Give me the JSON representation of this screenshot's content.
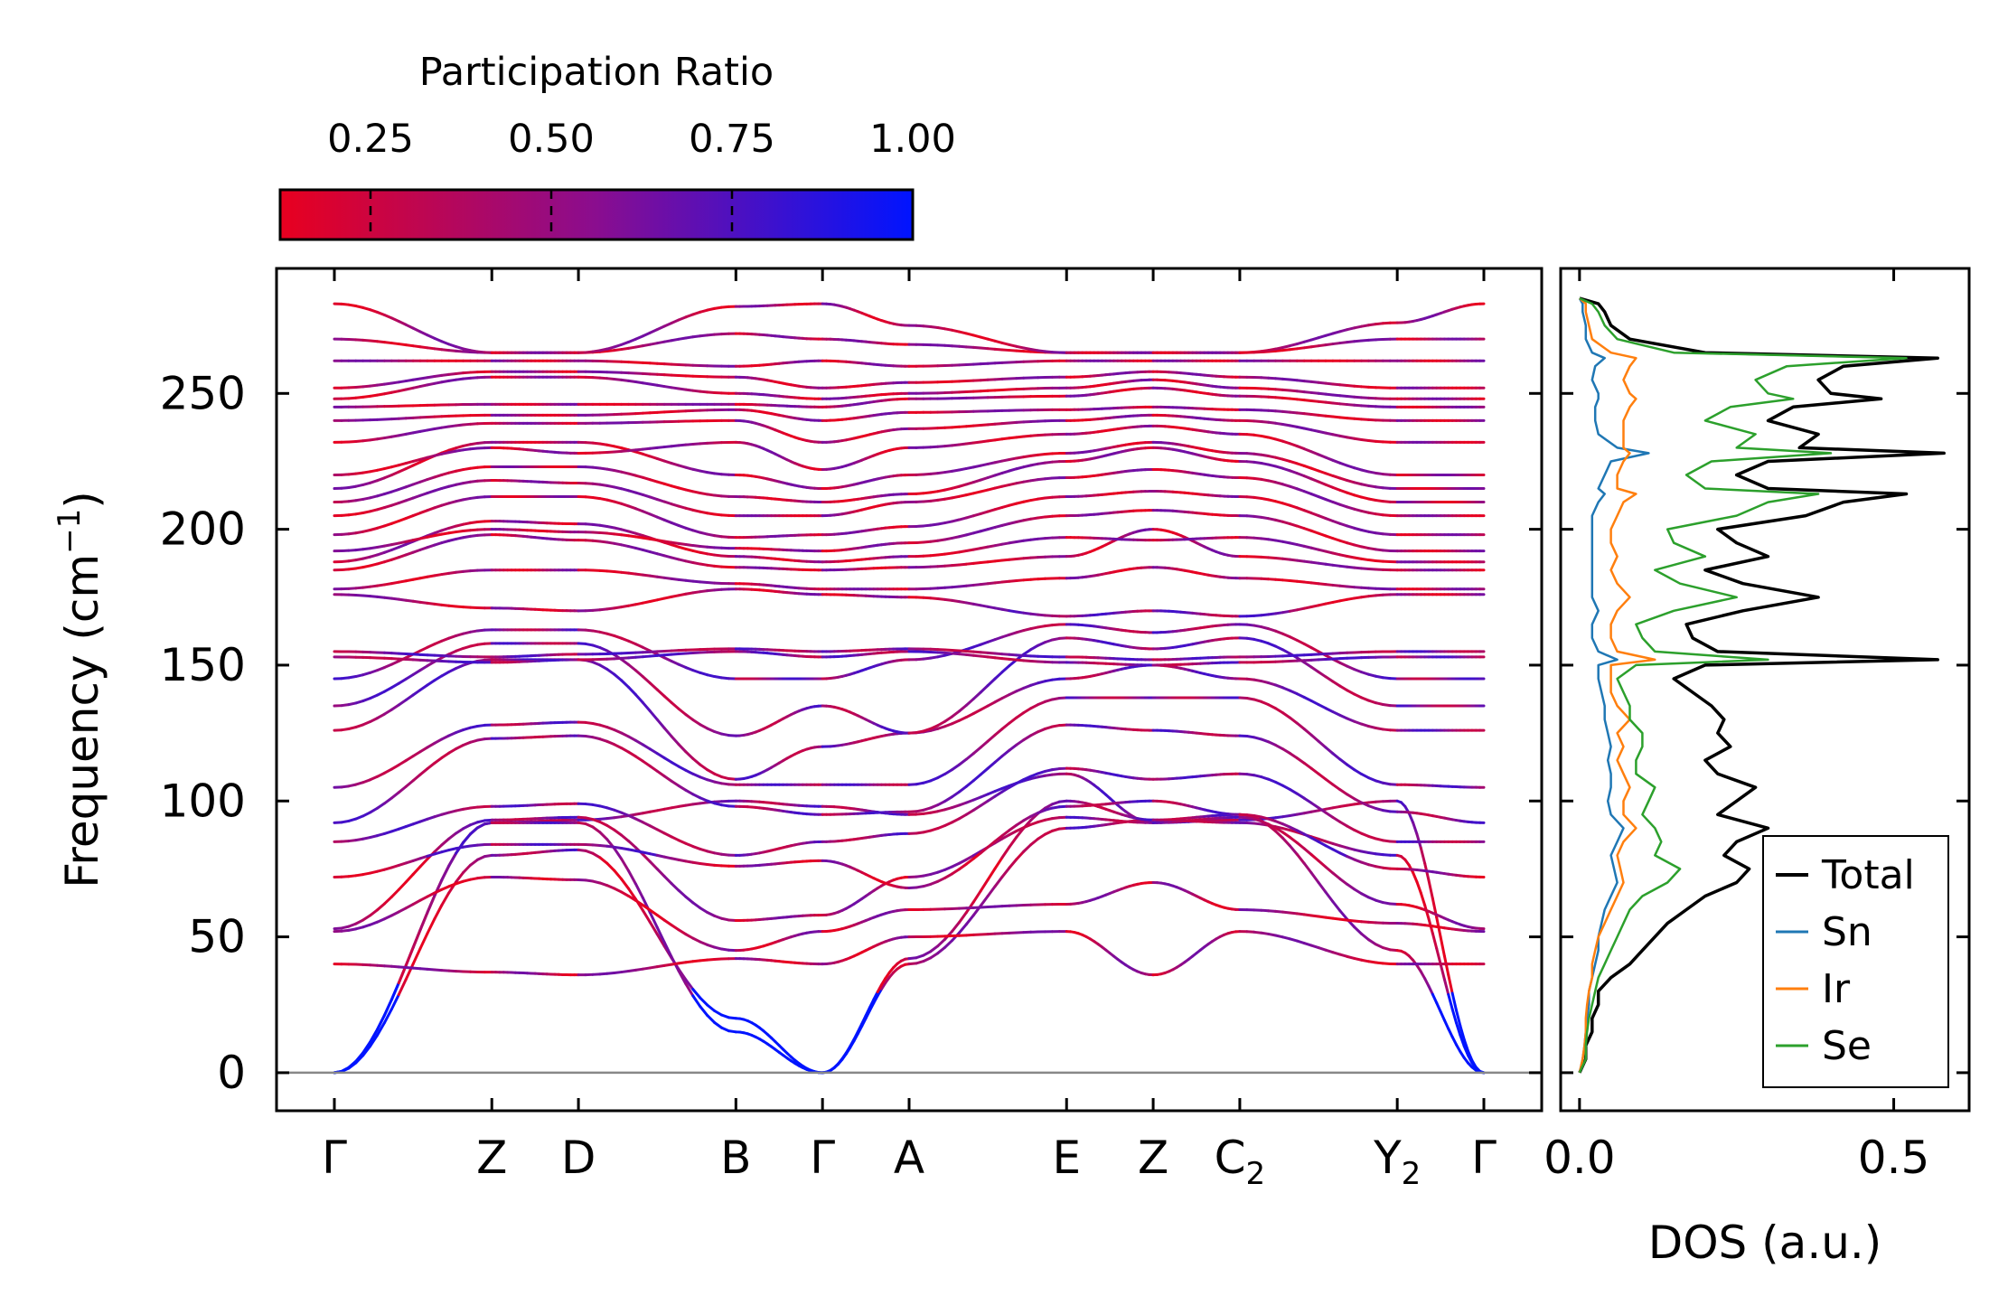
{
  "chart_data": [
    {
      "type": "line",
      "title": "",
      "ylabel_main": "Frequency (cm",
      "ylabel_sup": "−1",
      "ylabel_close": ")",
      "ylim": [
        -14,
        296
      ],
      "yticks": [
        0,
        50,
        100,
        150,
        200,
        250
      ],
      "ytick_labels": [
        "0",
        "50",
        "100",
        "150",
        "200",
        "250"
      ],
      "high_sym_positions": [
        0,
        1,
        1.55,
        2.55,
        3.1,
        3.65,
        4.65,
        5.2,
        5.75,
        6.75,
        7.3
      ],
      "high_sym_labels": [
        {
          "main": "Γ",
          "sub": ""
        },
        {
          "main": "Z",
          "sub": ""
        },
        {
          "main": "D",
          "sub": ""
        },
        {
          "main": "B",
          "sub": ""
        },
        {
          "main": "Γ",
          "sub": ""
        },
        {
          "main": "A",
          "sub": ""
        },
        {
          "main": "E",
          "sub": ""
        },
        {
          "main": "Z",
          "sub": ""
        },
        {
          "main": "C",
          "sub": "2"
        },
        {
          "main": "Y",
          "sub": "2"
        },
        {
          "main": "Γ",
          "sub": ""
        }
      ],
      "node_frequencies": [
        [
          0,
          92,
          93,
          100,
          98,
          95,
          110,
          92,
          93,
          100,
          0
        ],
        [
          0,
          80,
          82,
          20,
          0,
          40,
          90,
          93,
          92,
          80,
          0
        ],
        [
          0,
          92,
          92,
          15,
          0,
          42,
          100,
          93,
          95,
          45,
          0
        ],
        [
          40,
          37,
          36,
          42,
          40,
          50,
          52,
          36,
          52,
          40,
          40
        ],
        [
          52,
          72,
          71,
          45,
          52,
          60,
          62,
          70,
          60,
          55,
          52
        ],
        [
          53,
          93,
          94,
          56,
          58,
          72,
          94,
          92,
          94,
          62,
          53
        ],
        [
          72,
          84,
          84,
          76,
          78,
          68,
          98,
          100,
          95,
          75,
          72
        ],
        [
          85,
          98,
          99,
          80,
          85,
          88,
          112,
          108,
          110,
          85,
          85
        ],
        [
          92,
          123,
          124,
          98,
          95,
          96,
          128,
          126,
          124,
          96,
          92
        ],
        [
          105,
          128,
          129,
          106,
          106,
          106,
          138,
          138,
          138,
          106,
          105
        ],
        [
          126,
          152,
          152,
          108,
          120,
          125,
          145,
          150,
          145,
          126,
          126
        ],
        [
          135,
          158,
          158,
          124,
          135,
          125,
          160,
          156,
          160,
          135,
          135
        ],
        [
          145,
          163,
          163,
          145,
          145,
          152,
          165,
          162,
          165,
          145,
          145
        ],
        [
          153,
          151,
          152,
          155,
          153,
          155,
          151,
          150,
          151,
          153,
          153
        ],
        [
          155,
          153,
          154,
          156,
          155,
          156,
          153,
          152,
          153,
          155,
          155
        ],
        [
          176,
          171,
          170,
          178,
          176,
          175,
          168,
          170,
          168,
          176,
          176
        ],
        [
          178,
          185,
          185,
          180,
          178,
          178,
          182,
          186,
          182,
          178,
          178
        ],
        [
          185,
          198,
          196,
          186,
          185,
          186,
          190,
          200,
          190,
          185,
          185
        ],
        [
          188,
          203,
          202,
          190,
          188,
          190,
          197,
          196,
          197,
          188,
          188
        ],
        [
          192,
          200,
          199,
          193,
          192,
          195,
          205,
          207,
          205,
          192,
          192
        ],
        [
          198,
          212,
          212,
          197,
          198,
          201,
          212,
          214,
          212,
          198,
          198
        ],
        [
          205,
          218,
          217,
          205,
          205,
          210,
          219,
          222,
          219,
          205,
          205
        ],
        [
          210,
          223,
          223,
          212,
          210,
          213,
          225,
          230,
          225,
          210,
          210
        ],
        [
          215,
          232,
          232,
          220,
          215,
          220,
          228,
          232,
          228,
          215,
          215
        ],
        [
          220,
          230,
          228,
          232,
          222,
          230,
          235,
          238,
          235,
          220,
          220
        ],
        [
          232,
          239,
          239,
          240,
          232,
          237,
          240,
          242,
          240,
          232,
          232
        ],
        [
          240,
          242,
          242,
          244,
          240,
          243,
          244,
          245,
          244,
          240,
          240
        ],
        [
          245,
          246,
          246,
          246,
          245,
          248,
          249,
          252,
          249,
          245,
          245
        ],
        [
          248,
          256,
          256,
          250,
          248,
          250,
          252,
          255,
          252,
          248,
          248
        ],
        [
          252,
          258,
          258,
          256,
          252,
          254,
          256,
          258,
          256,
          252,
          252
        ],
        [
          262,
          262,
          262,
          260,
          262,
          260,
          262,
          262,
          262,
          262,
          262
        ],
        [
          270,
          265,
          265,
          272,
          270,
          268,
          265,
          265,
          265,
          270,
          270
        ],
        [
          283,
          265,
          265,
          282,
          283,
          275,
          265,
          265,
          265,
          276,
          283
        ]
      ],
      "colorbar": {
        "label": "Participation Ratio",
        "tick_labels": [
          "0.25",
          "0.50",
          "0.75",
          "1.00"
        ],
        "tick_values": [
          0.25,
          0.5,
          0.75,
          1.0
        ],
        "range": [
          0.125,
          1.0
        ],
        "color_low": "#e8001f",
        "color_mid": "#8a0d8f",
        "color_high": "#0014ff"
      }
    },
    {
      "type": "line",
      "xlabel": "DOS (a.u.)",
      "xlim": [
        -0.03,
        0.62
      ],
      "xticks": [
        0.0,
        0.5
      ],
      "xtick_labels": [
        "0.0",
        "0.5"
      ],
      "legend_position": "lower-right",
      "series": [
        {
          "name": "Total",
          "color": "#000000"
        },
        {
          "name": "Sn",
          "color": "#1f77b4"
        },
        {
          "name": "Ir",
          "color": "#ff7f0e"
        },
        {
          "name": "Se",
          "color": "#2ca02c"
        }
      ],
      "frequency": [
        0,
        5,
        10,
        15,
        20,
        25,
        30,
        35,
        40,
        45,
        50,
        55,
        60,
        65,
        70,
        75,
        80,
        85,
        90,
        95,
        100,
        105,
        110,
        115,
        120,
        125,
        130,
        135,
        140,
        145,
        150,
        152,
        155,
        160,
        165,
        170,
        175,
        180,
        185,
        190,
        195,
        200,
        205,
        210,
        213,
        215,
        220,
        225,
        228,
        230,
        235,
        240,
        245,
        248,
        250,
        255,
        260,
        263,
        265,
        270,
        275,
        280,
        283,
        285
      ],
      "dos": {
        "Total": [
          0,
          0.01,
          0.01,
          0.02,
          0.02,
          0.03,
          0.03,
          0.05,
          0.08,
          0.1,
          0.12,
          0.14,
          0.17,
          0.2,
          0.25,
          0.27,
          0.23,
          0.25,
          0.3,
          0.22,
          0.25,
          0.28,
          0.22,
          0.2,
          0.24,
          0.22,
          0.23,
          0.21,
          0.18,
          0.15,
          0.2,
          0.57,
          0.22,
          0.18,
          0.17,
          0.26,
          0.38,
          0.26,
          0.2,
          0.3,
          0.25,
          0.22,
          0.36,
          0.42,
          0.52,
          0.3,
          0.25,
          0.3,
          0.58,
          0.35,
          0.38,
          0.3,
          0.34,
          0.48,
          0.4,
          0.38,
          0.42,
          0.57,
          0.2,
          0.08,
          0.05,
          0.04,
          0.03,
          0.0
        ],
        "Sn": [
          0,
          0.005,
          0.008,
          0.01,
          0.012,
          0.015,
          0.015,
          0.02,
          0.025,
          0.03,
          0.03,
          0.035,
          0.04,
          0.05,
          0.06,
          0.055,
          0.05,
          0.06,
          0.07,
          0.05,
          0.045,
          0.05,
          0.05,
          0.045,
          0.05,
          0.045,
          0.04,
          0.04,
          0.035,
          0.03,
          0.03,
          0.06,
          0.03,
          0.02,
          0.02,
          0.03,
          0.02,
          0.02,
          0.02,
          0.02,
          0.02,
          0.02,
          0.02,
          0.03,
          0.04,
          0.03,
          0.04,
          0.05,
          0.11,
          0.06,
          0.03,
          0.025,
          0.025,
          0.03,
          0.03,
          0.02,
          0.025,
          0.04,
          0.02,
          0.01,
          0.01,
          0.005,
          0.005,
          0.0
        ],
        "Ir": [
          0,
          0.005,
          0.008,
          0.01,
          0.01,
          0.012,
          0.015,
          0.02,
          0.02,
          0.025,
          0.03,
          0.04,
          0.05,
          0.06,
          0.07,
          0.065,
          0.06,
          0.07,
          0.09,
          0.07,
          0.07,
          0.08,
          0.07,
          0.06,
          0.07,
          0.06,
          0.08,
          0.06,
          0.05,
          0.05,
          0.05,
          0.12,
          0.06,
          0.05,
          0.05,
          0.06,
          0.08,
          0.06,
          0.05,
          0.06,
          0.05,
          0.05,
          0.06,
          0.07,
          0.09,
          0.06,
          0.06,
          0.07,
          0.08,
          0.07,
          0.07,
          0.07,
          0.08,
          0.09,
          0.08,
          0.07,
          0.08,
          0.09,
          0.05,
          0.02,
          0.015,
          0.01,
          0.01,
          0.0
        ],
        "Se": [
          0,
          0.01,
          0.01,
          0.012,
          0.015,
          0.02,
          0.025,
          0.03,
          0.04,
          0.05,
          0.06,
          0.07,
          0.08,
          0.1,
          0.14,
          0.16,
          0.12,
          0.13,
          0.12,
          0.1,
          0.11,
          0.12,
          0.09,
          0.09,
          0.1,
          0.1,
          0.08,
          0.08,
          0.07,
          0.06,
          0.09,
          0.3,
          0.12,
          0.1,
          0.09,
          0.15,
          0.25,
          0.16,
          0.12,
          0.2,
          0.15,
          0.14,
          0.25,
          0.3,
          0.38,
          0.2,
          0.17,
          0.21,
          0.4,
          0.25,
          0.28,
          0.2,
          0.24,
          0.34,
          0.3,
          0.28,
          0.33,
          0.52,
          0.15,
          0.06,
          0.04,
          0.03,
          0.02,
          0.0
        ]
      }
    }
  ]
}
